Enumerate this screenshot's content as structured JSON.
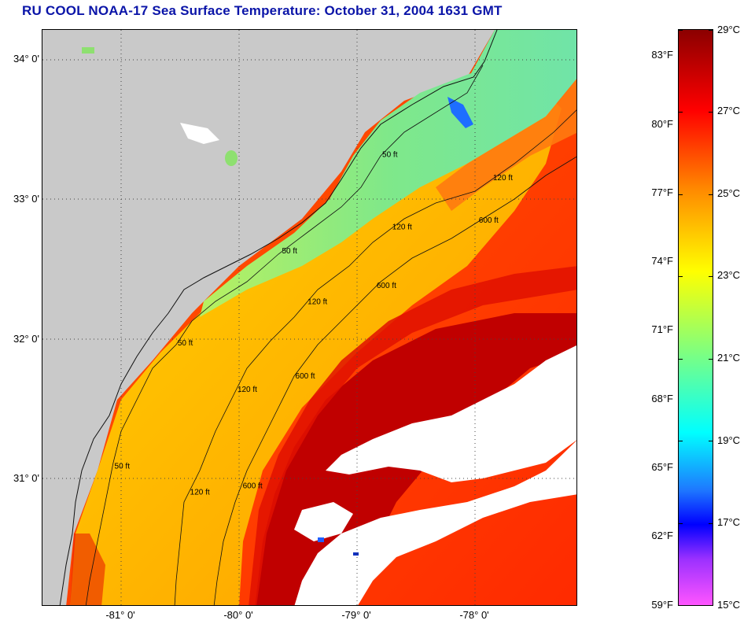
{
  "title": "RU COOL  NOAA-17  Sea Surface Temperature:  October 31, 2004 1631 GMT",
  "map": {
    "lat_labels": [
      "34° 0'",
      "33° 0'",
      "32° 0'",
      "31° 0'"
    ],
    "lon_labels": [
      "-81° 0'",
      "-80° 0'",
      "-79° 0'",
      "-78° 0'"
    ],
    "contour_labels": [
      "50 ft",
      "50 ft",
      "50 ft",
      "50 ft",
      "120 ft",
      "120 ft",
      "120 ft",
      "120 ft",
      "120 ft",
      "600 ft",
      "600 ft",
      "600 ft",
      "600 ft"
    ],
    "colors": {
      "land": "#c9c9c9",
      "cloud": "#ffffff",
      "coastal_cool": "#7fe88a",
      "shelf_warm": "#ffb000",
      "gulf_stream": "#c80000",
      "offshore": "#ff3a00"
    }
  },
  "colorbar": {
    "fahrenheit_labels": [
      "83°F",
      "80°F",
      "77°F",
      "74°F",
      "71°F",
      "68°F",
      "65°F",
      "62°F",
      "59°F"
    ],
    "celsius_labels": [
      "29°C",
      "27°C",
      "25°C",
      "23°C",
      "21°C",
      "19°C",
      "17°C",
      "15°C"
    ],
    "range_c": [
      15,
      29
    ],
    "gradient_stops": [
      "#8b0000",
      "#ff0000",
      "#ff8c00",
      "#ffff00",
      "#7fff7f",
      "#00ffff",
      "#1e78ff",
      "#0000ff",
      "#9b30ff",
      "#ff55ff"
    ]
  }
}
